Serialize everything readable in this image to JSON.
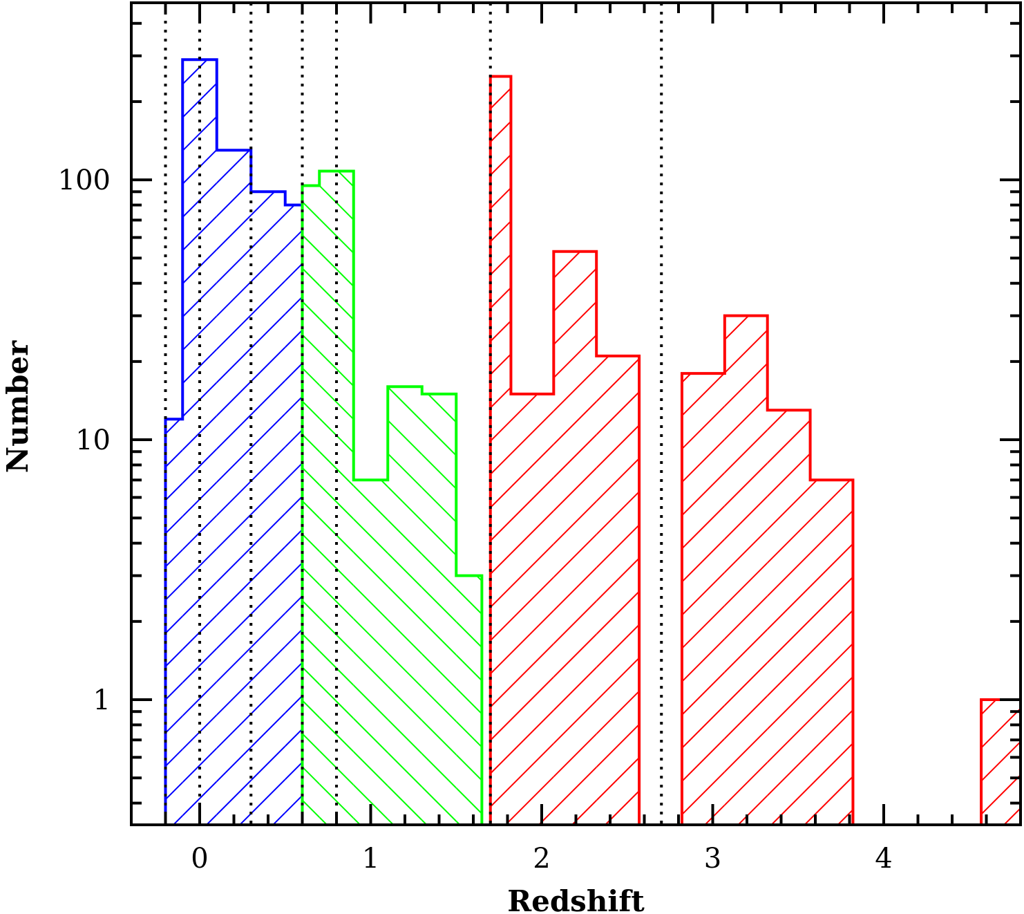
{
  "chart_data": {
    "type": "bar",
    "xlabel": "Redshift",
    "ylabel": "Number",
    "xlim": [
      -0.4,
      4.8
    ],
    "ylim": [
      0.33,
      480
    ],
    "yscale": "log",
    "x_ticks": [
      0,
      1,
      2,
      3,
      4
    ],
    "x_tick_labels": [
      "0",
      "1",
      "2",
      "3",
      "4"
    ],
    "y_ticks": [
      1,
      10,
      100
    ],
    "y_tick_labels": [
      "1",
      "10",
      "100"
    ],
    "grid": false,
    "reference_lines_x": [
      -0.2,
      0.0,
      0.3,
      0.6,
      0.8,
      1.7,
      2.7
    ],
    "series": [
      {
        "color": "#0000ff",
        "hatch": "forward",
        "bins": [
          {
            "x0": -0.2,
            "x1": -0.1,
            "value": 12
          },
          {
            "x0": -0.1,
            "x1": 0.1,
            "value": 290
          },
          {
            "x0": 0.1,
            "x1": 0.3,
            "value": 130
          },
          {
            "x0": 0.3,
            "x1": 0.5,
            "value": 90
          },
          {
            "x0": 0.5,
            "x1": 0.6,
            "value": 80
          }
        ]
      },
      {
        "color": "#00ff00",
        "hatch": "backward",
        "bins": [
          {
            "x0": 0.6,
            "x1": 0.7,
            "value": 95
          },
          {
            "x0": 0.7,
            "x1": 0.9,
            "value": 108
          },
          {
            "x0": 0.9,
            "x1": 1.1,
            "value": 7
          },
          {
            "x0": 1.1,
            "x1": 1.3,
            "value": 16
          },
          {
            "x0": 1.3,
            "x1": 1.5,
            "value": 15
          },
          {
            "x0": 1.5,
            "x1": 1.65,
            "value": 3
          }
        ]
      },
      {
        "color": "#ff0000",
        "hatch": "forward",
        "bins": [
          {
            "x0": 1.7,
            "x1": 1.82,
            "value": 250
          },
          {
            "x0": 1.82,
            "x1": 2.07,
            "value": 15
          },
          {
            "x0": 2.07,
            "x1": 2.32,
            "value": 53
          },
          {
            "x0": 2.32,
            "x1": 2.57,
            "value": 21
          },
          {
            "x0": 2.82,
            "x1": 3.07,
            "value": 18
          },
          {
            "x0": 3.07,
            "x1": 3.32,
            "value": 30
          },
          {
            "x0": 3.32,
            "x1": 3.57,
            "value": 13
          },
          {
            "x0": 3.57,
            "x1": 3.82,
            "value": 7
          },
          {
            "x0": 4.57,
            "x1": 4.8,
            "value": 1
          }
        ]
      }
    ]
  }
}
